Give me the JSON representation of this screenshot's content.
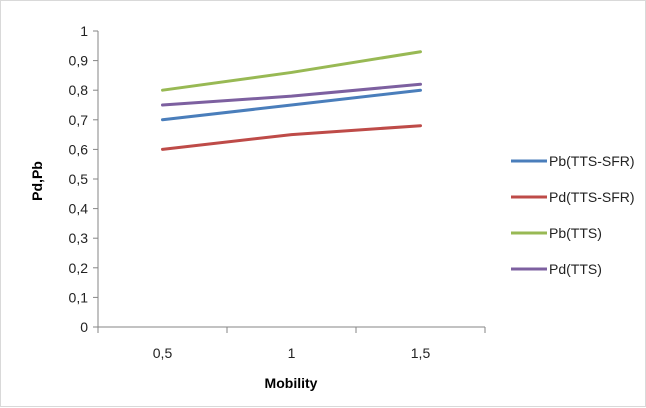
{
  "chart_data": {
    "type": "line",
    "title": "",
    "xlabel": "Mobility",
    "ylabel": "Pd,Pb",
    "categories": [
      "0,5",
      "1",
      "1,5"
    ],
    "x": [
      0.5,
      1,
      1.5
    ],
    "ylim": [
      0,
      1
    ],
    "yticks": [
      "0",
      "0,1",
      "0,2",
      "0,3",
      "0,4",
      "0,5",
      "0,6",
      "0,7",
      "0,8",
      "0,9",
      "1"
    ],
    "ytick_values": [
      0,
      0.1,
      0.2,
      0.3,
      0.4,
      0.5,
      0.6,
      0.7,
      0.8,
      0.9,
      1
    ],
    "grid": false,
    "legend_position": "right",
    "series": [
      {
        "name": "Pb(TTS-SFR)",
        "values": [
          0.7,
          0.75,
          0.8
        ],
        "color": "#4a7ebb"
      },
      {
        "name": "Pd(TTS-SFR)",
        "values": [
          0.6,
          0.65,
          0.68
        ],
        "color": "#be4b48"
      },
      {
        "name": "Pb(TTS)",
        "values": [
          0.8,
          0.86,
          0.93
        ],
        "color": "#98b954"
      },
      {
        "name": "Pd(TTS)",
        "values": [
          0.75,
          0.78,
          0.82
        ],
        "color": "#7d60a0"
      }
    ]
  }
}
